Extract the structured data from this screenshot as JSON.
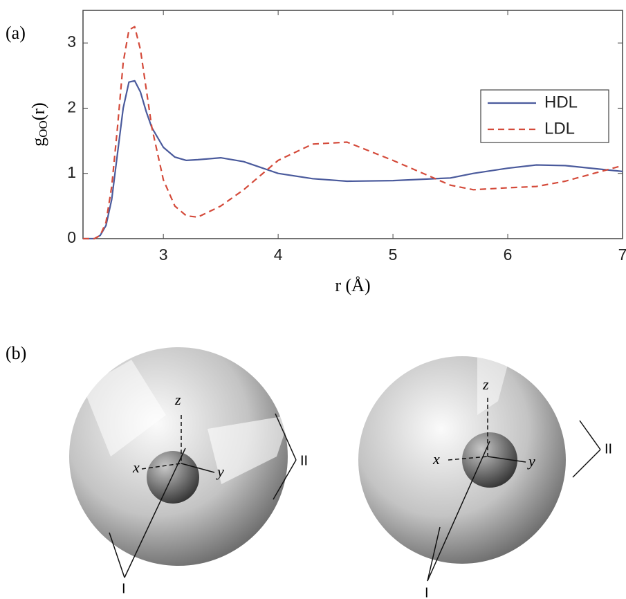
{
  "panel_a_label": "(a)",
  "chart_data": {
    "type": "line",
    "xlabel": "r (Å)",
    "ylabel": {
      "main": "g",
      "sub": "OO",
      "tail": "(r)"
    },
    "x": [
      2.3,
      2.4,
      2.45,
      2.5,
      2.55,
      2.6,
      2.65,
      2.7,
      2.75,
      2.8,
      2.85,
      2.9,
      3.0,
      3.1,
      3.2,
      3.3,
      3.5,
      3.7,
      4.0,
      4.3,
      4.6,
      5.0,
      5.5,
      5.7,
      6.0,
      6.25,
      6.5,
      7.0
    ],
    "series": [
      {
        "name": "HDL",
        "color": "#4a5a9c",
        "dash": false,
        "values": [
          0,
          0,
          0.05,
          0.2,
          0.6,
          1.3,
          2.0,
          2.4,
          2.42,
          2.25,
          1.95,
          1.7,
          1.4,
          1.25,
          1.2,
          1.21,
          1.24,
          1.18,
          1.0,
          0.92,
          0.88,
          0.89,
          0.93,
          1.0,
          1.08,
          1.13,
          1.12,
          1.03
        ]
      },
      {
        "name": "LDL",
        "color": "#d44a3a",
        "dash": true,
        "values": [
          0,
          0,
          0.05,
          0.25,
          0.8,
          1.7,
          2.7,
          3.2,
          3.25,
          2.9,
          2.3,
          1.7,
          0.9,
          0.5,
          0.35,
          0.33,
          0.5,
          0.75,
          1.2,
          1.45,
          1.48,
          1.2,
          0.82,
          0.75,
          0.78,
          0.8,
          0.88,
          1.12
        ]
      }
    ],
    "xlim": [
      2.3,
      7
    ],
    "xticks": [
      3,
      4,
      5,
      6,
      7
    ],
    "ylim": [
      0,
      3.5
    ],
    "yticks": [
      0,
      1,
      2,
      3
    ],
    "grid": false,
    "legend": "upper right"
  },
  "panel_b": {
    "label": "(b)",
    "left": {
      "axes": [
        "x",
        "y",
        "z"
      ],
      "callouts": [
        "I",
        "II"
      ]
    },
    "right": {
      "axes": [
        "x",
        "y",
        "z"
      ],
      "callouts": [
        "I",
        "II"
      ]
    }
  }
}
